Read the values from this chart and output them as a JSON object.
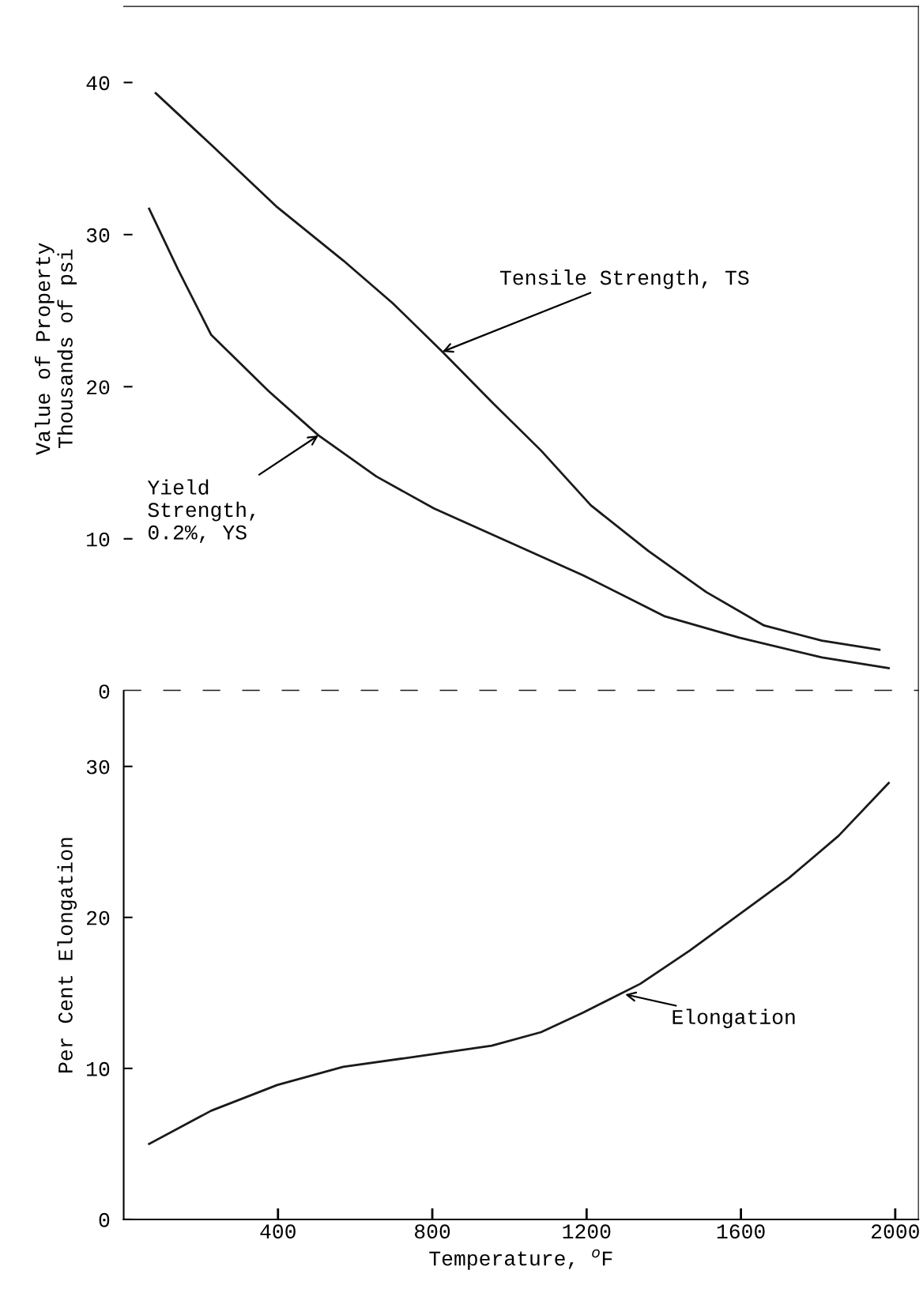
{
  "chart_data": [
    {
      "type": "line",
      "ylabel": "Value of Property\nThousands of psi",
      "xlim": [
        0,
        2060
      ],
      "ylim": [
        0,
        45
      ],
      "xticks": [
        400,
        800,
        1200,
        1600,
        2000
      ],
      "yticks": [
        0,
        10,
        20,
        30,
        40
      ],
      "tick_labels": "y",
      "grid": false,
      "series": [
        {
          "color": "#1a1a1a",
          "x": [
            83,
            227,
            398,
            569,
            697,
            826,
            954,
            1082,
            1211,
            1360,
            1510,
            1660,
            1810,
            1959
          ],
          "values": [
            39.3,
            35.9,
            31.8,
            28.3,
            25.5,
            22.3,
            19.0,
            15.8,
            12.2,
            9.2,
            6.5,
            4.3,
            3.3,
            2.7
          ]
        },
        {
          "color": "#1a1a1a",
          "x": [
            66,
            141,
            227,
            376,
            505,
            655,
            804,
            997,
            1191,
            1403,
            1596,
            1810,
            1983
          ],
          "values": [
            31.7,
            27.7,
            23.4,
            19.7,
            16.8,
            14.1,
            12.0,
            9.8,
            7.6,
            4.9,
            3.5,
            2.2,
            1.5
          ]
        }
      ],
      "ref_lines": [
        {
          "axis": "y",
          "value": 0,
          "line_style": "dashed",
          "color": "#1a1a1a"
        }
      ],
      "annotations": [
        {
          "text": "Tensile Strength, TS",
          "x": 826,
          "y": 22.3
        },
        {
          "text": "Yield\nStrength,\n0.2%, YS",
          "x": 505,
          "y": 16.8
        }
      ]
    },
    {
      "type": "line",
      "ylabel": "Per Cent Elongation",
      "xlabel": "Temperature, $^{o}$F",
      "xlim": [
        0,
        2060
      ],
      "ylim": [
        0,
        35
      ],
      "xticks": [
        400,
        800,
        1200,
        1600,
        2000
      ],
      "yticks": [
        0,
        10,
        20,
        30
      ],
      "grid": false,
      "series": [
        {
          "color": "#1a1a1a",
          "x": [
            66,
            227,
            398,
            569,
            791,
            954,
            1082,
            1191,
            1339,
            1467,
            1596,
            1724,
            1853,
            1983
          ],
          "values": [
            5.0,
            7.2,
            8.9,
            10.1,
            10.9,
            11.5,
            12.4,
            13.7,
            15.6,
            17.8,
            20.2,
            22.6,
            25.4,
            28.9
          ]
        }
      ],
      "annotations": [
        {
          "text": "Elongation",
          "x": 1300,
          "y": 14.9
        }
      ]
    }
  ]
}
